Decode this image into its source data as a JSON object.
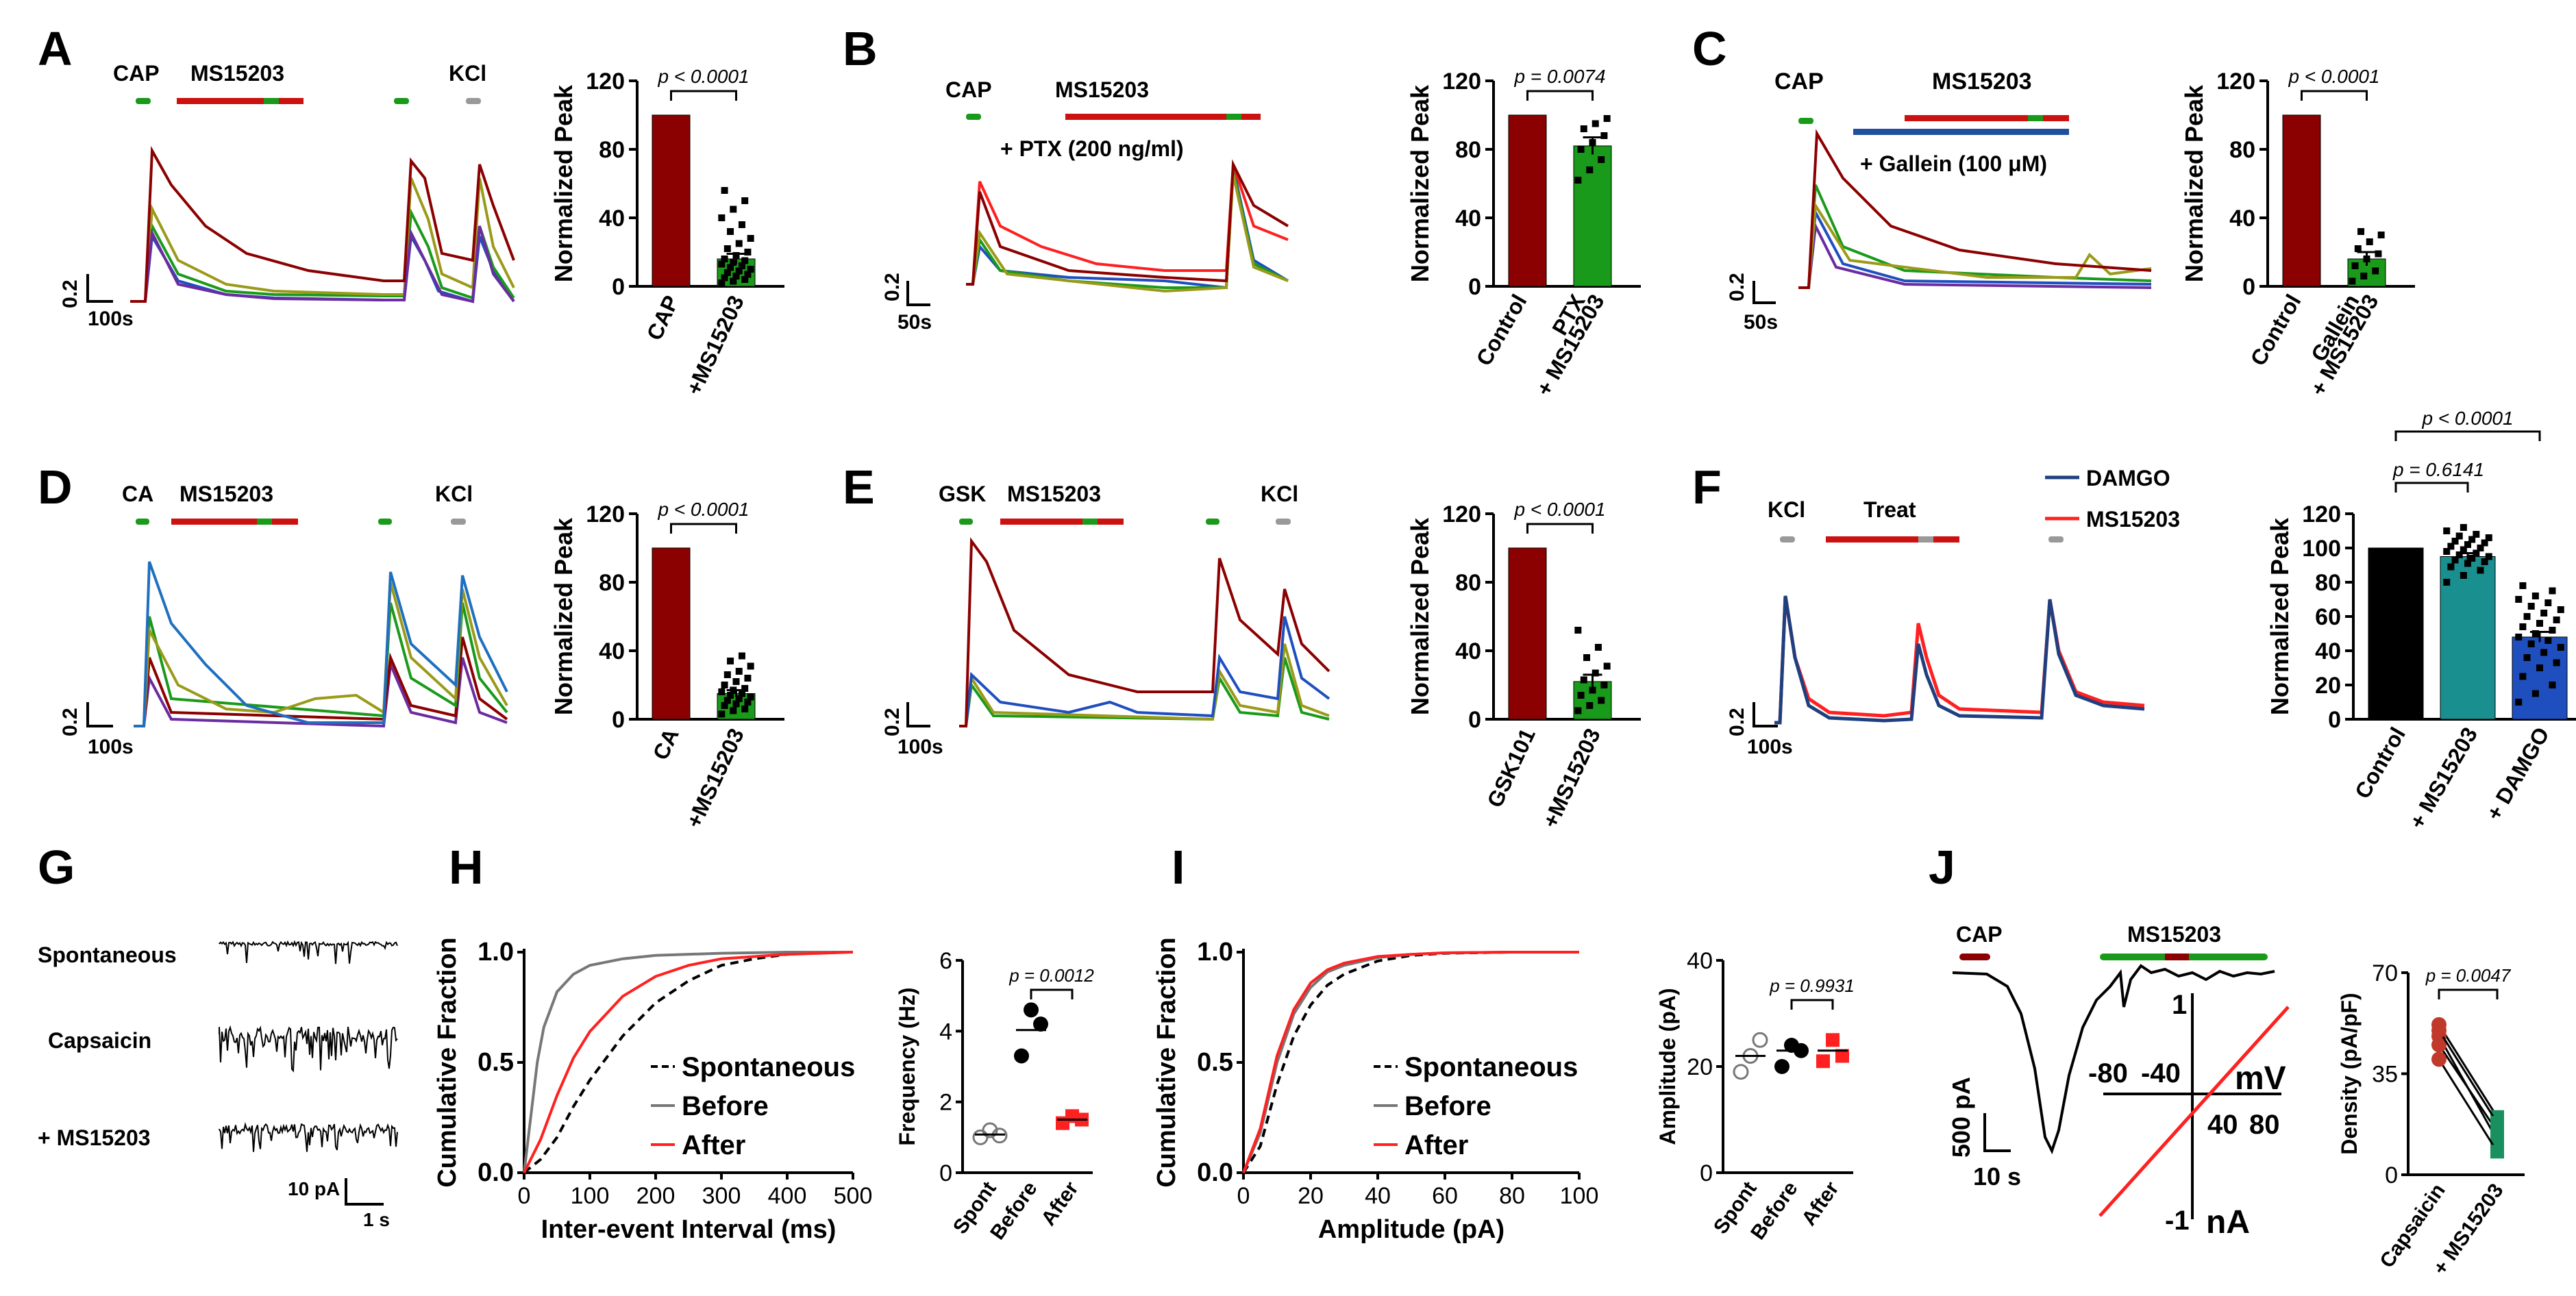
{
  "colors": {
    "darkred": "#8b0000",
    "red": "#ff2020",
    "green": "#1a9a1a",
    "olive": "#9a9a1a",
    "blue": "#1f4fbf",
    "navy": "#1f3f7f",
    "purple": "#6a2ca0",
    "teal": "#1a8f8f",
    "gray": "#999999",
    "black": "#000000"
  },
  "panels": {
    "A": {
      "letter": "A",
      "bar_labels": [
        "CAP",
        "MS15203",
        "KCl"
      ],
      "scale_y": "0.2",
      "scale_x": "100s",
      "bar_chart": {
        "ylabel": "Normalized Peak",
        "yticks": [
          "0",
          "40",
          "80",
          "120"
        ],
        "categories": [
          "CAP",
          "+MS15203"
        ],
        "p_text": "p < 0.0001"
      }
    },
    "B": {
      "letter": "B",
      "bar_labels": [
        "CAP",
        "MS15203",
        "+ PTX (200 ng/ml)"
      ],
      "scale_y": "0.2",
      "scale_x": "50s",
      "bar_chart": {
        "ylabel": "Normalized Peak",
        "yticks": [
          "0",
          "40",
          "80",
          "120"
        ],
        "categories": [
          "Control",
          "PTX",
          "+ MS15203"
        ],
        "p_text": "p = 0.0074"
      }
    },
    "C": {
      "letter": "C",
      "bar_labels": [
        "CAP",
        "MS15203",
        "+ Gallein (100 μM)"
      ],
      "scale_y": "0.2",
      "scale_x": "50s",
      "bar_chart": {
        "ylabel": "Normalized Peak",
        "yticks": [
          "0",
          "40",
          "80",
          "120"
        ],
        "categories": [
          "Control",
          "Gallein",
          "+ MS15203"
        ],
        "p_text": "p < 0.0001"
      }
    },
    "D": {
      "letter": "D",
      "bar_labels": [
        "CA",
        "MS15203",
        "KCl"
      ],
      "scale_y": "0.2",
      "scale_x": "100s",
      "bar_chart": {
        "ylabel": "Normalized Peak",
        "yticks": [
          "0",
          "40",
          "80",
          "120"
        ],
        "categories": [
          "CA",
          "+MS15203"
        ],
        "p_text": "p < 0.0001"
      }
    },
    "E": {
      "letter": "E",
      "bar_labels": [
        "GSK",
        "MS15203",
        "KCl"
      ],
      "scale_y": "0.2",
      "scale_x": "100s",
      "bar_chart": {
        "ylabel": "Normalized Peak",
        "yticks": [
          "0",
          "40",
          "80",
          "120"
        ],
        "categories": [
          "GSK101",
          "+MS15203"
        ],
        "p_text": "p < 0.0001"
      }
    },
    "F": {
      "letter": "F",
      "bar_labels": [
        "KCl",
        "Treat"
      ],
      "legend": [
        "DAMGO",
        "MS15203"
      ],
      "scale_y": "0.2",
      "scale_x": "100s",
      "bar_chart": {
        "ylabel": "Normalized Peak",
        "yticks": [
          "0",
          "20",
          "40",
          "60",
          "80",
          "100",
          "120"
        ],
        "categories": [
          "Control",
          "+ MS15203",
          "+ DAMGO"
        ],
        "p_texts": [
          "p = 0.6141",
          "p < 0.0001"
        ]
      }
    },
    "G": {
      "letter": "G",
      "rows": [
        "Spontaneous",
        "Capsaicin",
        "+ MS15203"
      ],
      "scale_y": "10 pA",
      "scale_x": "1 s"
    },
    "H": {
      "letter": "H",
      "xlabel": "Inter-event Interval (ms)",
      "ylabel": "Cumulative Fraction",
      "xticks": [
        "0",
        "100",
        "200",
        "300",
        "400",
        "500"
      ],
      "yticks": [
        "0.0",
        "0.5",
        "1.0"
      ],
      "legend": [
        "Spontaneous",
        "Before",
        "After"
      ],
      "scatter": {
        "ylabel": "Frequency (Hz)",
        "yticks": [
          "0",
          "2",
          "4",
          "6"
        ],
        "categories": [
          "Spont",
          "Before",
          "After"
        ],
        "p_text": "p = 0.0012"
      }
    },
    "I": {
      "letter": "I",
      "xlabel": "Amplitude (pA)",
      "ylabel": "Cumulative Fraction",
      "xticks": [
        "0",
        "20",
        "40",
        "60",
        "80",
        "100"
      ],
      "yticks": [
        "0.0",
        "0.5",
        "1.0"
      ],
      "legend": [
        "Spontaneous",
        "Before",
        "After"
      ],
      "scatter": {
        "ylabel": "Amplitude (pA)",
        "yticks": [
          "0",
          "20",
          "40"
        ],
        "categories": [
          "Spont",
          "Before",
          "After"
        ],
        "p_text": "p = 0.9931"
      }
    },
    "J": {
      "letter": "J",
      "bar_labels": [
        "CAP",
        "MS15203"
      ],
      "scale_y": "500 pA",
      "scale_x": "10 s",
      "iv_labels": [
        "-80",
        "-40",
        "mV",
        "40",
        "80",
        "1",
        "-1",
        "nA"
      ],
      "paired": {
        "ylabel": "Density (pA/pF)",
        "yticks": [
          "0",
          "35",
          "70"
        ],
        "categories": [
          "Capsaicin",
          "+ MS15203"
        ],
        "p_text": "p = 0.0047"
      }
    }
  },
  "chart_data": [
    {
      "panel": "A",
      "type": "bar",
      "ylabel": "Normalized Peak",
      "ylim": [
        0,
        120
      ],
      "categories": [
        "CAP",
        "+MS15203"
      ],
      "values": [
        100,
        16
      ],
      "sem": [
        0,
        3
      ],
      "points": [
        [],
        [
          2,
          3,
          4,
          5,
          6,
          7,
          8,
          9,
          10,
          11,
          12,
          13,
          14,
          15,
          16,
          18,
          20,
          22,
          25,
          28,
          32,
          36,
          40,
          45,
          50,
          56
        ]
      ],
      "bar_colors": [
        "#8b0000",
        "#1a9a1a"
      ],
      "p_value": "p < 0.0001"
    },
    {
      "panel": "B",
      "type": "bar",
      "ylabel": "Normalized Peak",
      "ylim": [
        0,
        120
      ],
      "categories": [
        "Control",
        "PTX + MS15203"
      ],
      "values": [
        100,
        82
      ],
      "sem": [
        0,
        5
      ],
      "points": [
        [],
        [
          62,
          68,
          74,
          80,
          84,
          88,
          92,
          95,
          98
        ]
      ],
      "bar_colors": [
        "#8b0000",
        "#1a9a1a"
      ],
      "p_value": "p = 0.0074"
    },
    {
      "panel": "C",
      "type": "bar",
      "ylabel": "Normalized Peak",
      "ylim": [
        0,
        120
      ],
      "categories": [
        "Control",
        "Gallein + MS15203"
      ],
      "values": [
        100,
        16
      ],
      "sem": [
        0,
        4
      ],
      "points": [
        [],
        [
          3,
          6,
          9,
          12,
          16,
          19,
          22,
          26,
          30,
          32
        ]
      ],
      "bar_colors": [
        "#8b0000",
        "#1a9a1a"
      ],
      "p_value": "p < 0.0001"
    },
    {
      "panel": "D",
      "type": "bar",
      "ylabel": "Normalized Peak",
      "ylim": [
        0,
        120
      ],
      "categories": [
        "CA",
        "+MS15203"
      ],
      "values": [
        100,
        15
      ],
      "sem": [
        0,
        2
      ],
      "points": [
        [],
        [
          3,
          5,
          6,
          8,
          9,
          10,
          11,
          12,
          13,
          14,
          15,
          16,
          17,
          18,
          20,
          22,
          24,
          26,
          28,
          31,
          34,
          37
        ]
      ],
      "bar_colors": [
        "#8b0000",
        "#1a9a1a"
      ],
      "p_value": "p < 0.0001"
    },
    {
      "panel": "E",
      "type": "bar",
      "ylabel": "Normalized Peak",
      "ylim": [
        0,
        120
      ],
      "categories": [
        "GSK101",
        "+MS15203"
      ],
      "values": [
        100,
        22
      ],
      "sem": [
        0,
        4
      ],
      "points": [
        [],
        [
          5,
          8,
          11,
          14,
          17,
          20,
          23,
          27,
          31,
          36,
          42,
          52
        ]
      ],
      "bar_colors": [
        "#8b0000",
        "#1a9a1a"
      ],
      "p_value": "p < 0.0001"
    },
    {
      "panel": "F",
      "type": "bar",
      "ylabel": "Normalized Peak",
      "ylim": [
        0,
        120
      ],
      "categories": [
        "Control",
        "+ MS15203",
        "+ DAMGO"
      ],
      "values": [
        100,
        95,
        48
      ],
      "sem": [
        0,
        2,
        3
      ],
      "points": [
        [],
        [
          80,
          84,
          87,
          89,
          91,
          92,
          93,
          94,
          95,
          96,
          97,
          98,
          99,
          100,
          101,
          102,
          103,
          104,
          105,
          106,
          107,
          108,
          110,
          112
        ],
        [
          10,
          15,
          20,
          25,
          30,
          33,
          36,
          39,
          42,
          44,
          46,
          48,
          50,
          52,
          54,
          56,
          58,
          60,
          62,
          64,
          66,
          68,
          70,
          72,
          75,
          78
        ]
      ],
      "bar_colors": [
        "#000000",
        "#1a8f8f",
        "#1f4fbf"
      ],
      "p_values": [
        "p = 0.6141",
        "p < 0.0001"
      ]
    },
    {
      "panel": "H",
      "type": "line",
      "xlabel": "Inter-event Interval (ms)",
      "ylabel": "Cumulative Fraction",
      "xlim": [
        0,
        500
      ],
      "ylim": [
        0,
        1
      ],
      "series": [
        {
          "name": "Spontaneous",
          "x": [
            0,
            25,
            50,
            75,
            100,
            150,
            200,
            250,
            300,
            350,
            400,
            450,
            500
          ],
          "y": [
            0,
            0.06,
            0.16,
            0.3,
            0.42,
            0.62,
            0.77,
            0.87,
            0.94,
            0.97,
            0.99,
            1.0,
            1.0
          ]
        },
        {
          "name": "Before",
          "x": [
            0,
            10,
            20,
            30,
            50,
            75,
            100,
            150,
            200,
            300,
            400,
            500
          ],
          "y": [
            0,
            0.25,
            0.5,
            0.66,
            0.82,
            0.9,
            0.94,
            0.97,
            0.985,
            0.995,
            1.0,
            1.0
          ]
        },
        {
          "name": "After",
          "x": [
            0,
            25,
            50,
            75,
            100,
            150,
            200,
            250,
            300,
            400,
            500
          ],
          "y": [
            0,
            0.15,
            0.35,
            0.52,
            0.64,
            0.8,
            0.89,
            0.94,
            0.97,
            0.99,
            1.0
          ]
        }
      ]
    },
    {
      "panel": "H",
      "type": "scatter",
      "ylabel": "Frequency (Hz)",
      "ylim": [
        0,
        6
      ],
      "categories": [
        "Spont",
        "Before",
        "After"
      ],
      "points": [
        [
          1.0,
          1.2,
          1.05
        ],
        [
          3.3,
          4.6,
          4.2
        ],
        [
          1.4,
          1.6,
          1.5
        ]
      ],
      "means": [
        1.08,
        4.03,
        1.5
      ],
      "p_value": "p = 0.0012"
    },
    {
      "panel": "I",
      "type": "line",
      "xlabel": "Amplitude (pA)",
      "ylabel": "Cumulative Fraction",
      "xlim": [
        0,
        100
      ],
      "ylim": [
        0,
        1
      ],
      "series": [
        {
          "name": "Spontaneous",
          "x": [
            0,
            5,
            10,
            15,
            20,
            25,
            30,
            40,
            50,
            60,
            80,
            100
          ],
          "y": [
            0,
            0.12,
            0.4,
            0.62,
            0.76,
            0.85,
            0.9,
            0.96,
            0.985,
            0.995,
            1.0,
            1.0
          ]
        },
        {
          "name": "Before",
          "x": [
            0,
            5,
            10,
            15,
            20,
            25,
            30,
            40,
            50,
            60,
            80,
            100
          ],
          "y": [
            0,
            0.18,
            0.5,
            0.72,
            0.84,
            0.91,
            0.94,
            0.975,
            0.99,
            0.997,
            1.0,
            1.0
          ]
        },
        {
          "name": "After",
          "x": [
            0,
            5,
            10,
            15,
            20,
            25,
            30,
            40,
            50,
            60,
            80,
            100
          ],
          "y": [
            0,
            0.2,
            0.53,
            0.74,
            0.86,
            0.92,
            0.95,
            0.98,
            0.99,
            0.997,
            1.0,
            1.0
          ]
        }
      ]
    },
    {
      "panel": "I",
      "type": "scatter",
      "ylabel": "Amplitude (pA)",
      "ylim": [
        0,
        40
      ],
      "categories": [
        "Spont",
        "Before",
        "After"
      ],
      "points": [
        [
          19,
          22,
          25
        ],
        [
          20,
          24,
          23
        ],
        [
          21,
          25,
          22
        ]
      ],
      "means": [
        22,
        23,
        23
      ],
      "p_value": "p = 0.9931"
    },
    {
      "panel": "J",
      "type": "scatter",
      "ylabel": "Density (pA/pF)",
      "ylim": [
        0,
        70
      ],
      "categories": [
        "Capsaicin",
        "+ MS15203"
      ],
      "paired": [
        [
          52,
          20
        ],
        [
          48,
          12
        ],
        [
          45,
          15
        ],
        [
          40,
          8
        ],
        [
          50,
          18
        ]
      ],
      "p_value": "p = 0.0047"
    }
  ]
}
